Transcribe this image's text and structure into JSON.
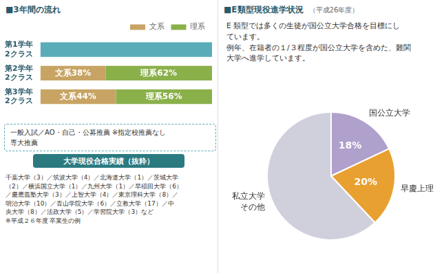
{
  "chart_data": [
    {
      "type": "bar",
      "orientation": "horizontal",
      "stacked": true,
      "title": "■3年間の流れ",
      "categories": [
        "第1学年\n2クラス",
        "第2学年\n2クラス",
        "第3学年\n2クラス"
      ],
      "series": [
        {
          "color": "#5aacb8",
          "values": [
            100,
            null,
            null
          ]
        },
        {
          "name": "文系",
          "color": "#c8a464",
          "values": [
            null,
            38,
            44
          ],
          "data_labels": true,
          "value_labels": [
            null,
            "文系38%",
            "文系44%"
          ]
        },
        {
          "name": "理系",
          "color": "#8ab04a",
          "values": [
            null,
            62,
            56
          ],
          "data_labels": true,
          "value_labels": [
            null,
            "理系62%",
            "理系56%"
          ]
        }
      ],
      "xlim": [
        0,
        100
      ],
      "tick_labels": "y",
      "grid": false,
      "legend": "top",
      "annotations": [
        "一般入試／AO・自己・公募推薦 ※指定校推薦なし\n専大推薦",
        "大学現役合格実績（抜粋）",
        "千葉大学（3）／筑波大学（4）／北海道大学（1）／茨城大学\n（2）／横浜国立大学（1）／九州大学（1）／早稲田大学（6）\n／慶應義塾大学（3）／上智大学（4）／東京理科大学（8）／\n明治大学（10）／青山学院大学（6）／立教大学（17）／中\n央大学（8）／法政大学（5）／学習院大学（3）など\n※平成２６年度 卒業生の例"
      ]
    },
    {
      "type": "pie",
      "title": "■E類型現役進学状況",
      "subtitle": "（平成26年度）",
      "categories": [
        "国公立大学",
        "早慶上理",
        "私立大学\nその他"
      ],
      "values": [
        18,
        20,
        62
      ],
      "colors": [
        "#b0a0cc",
        "#e8a030",
        "#d0d0dc"
      ],
      "data_labels": true,
      "value_labels": [
        "18%",
        "20%",
        null
      ],
      "annotations": [
        "E 類型では多くの生徒が国公立大学合格を目標にし\nています。\n例年、在籍者の１/３程度が国公立大学を含めた、難関\n大学へ進学しています。"
      ]
    }
  ]
}
